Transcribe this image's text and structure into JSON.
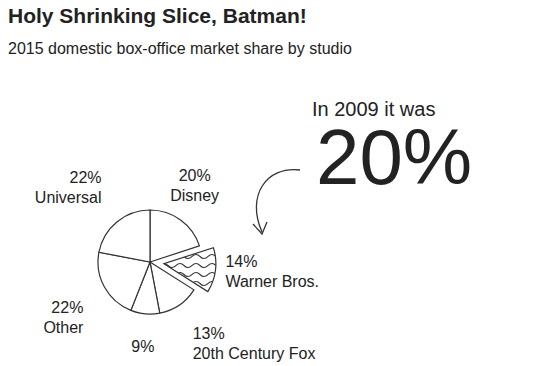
{
  "chart_data": {
    "type": "pie",
    "title": "Holy Shrinking Slice, Batman!",
    "subtitle": "2015 domestic box-office market share by studio",
    "categories": [
      "Disney",
      "Warner Bros.",
      "20th Century Fox",
      null,
      "Other",
      "Universal"
    ],
    "values": [
      20,
      14,
      13,
      9,
      22,
      22
    ],
    "value_labels": [
      "20%",
      "14%",
      "13%",
      "9%",
      "22%",
      "22%"
    ],
    "data_labels": true,
    "annotations": [
      {
        "text": "In 2009 it was"
      },
      {
        "text": "20%"
      }
    ]
  }
}
